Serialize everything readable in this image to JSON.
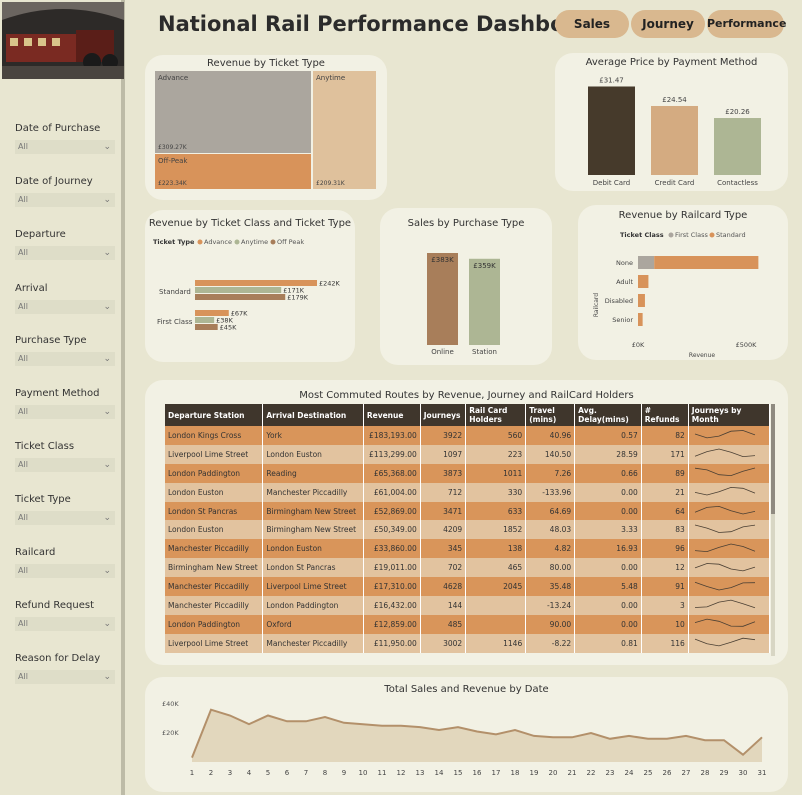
{
  "header": {
    "title": "National Rail Performance Dashboard"
  },
  "nav": {
    "sales": "Sales",
    "journey": "Journey",
    "performance": "Performance"
  },
  "filters": [
    {
      "label": "Date of Purchase",
      "value": "All"
    },
    {
      "label": "Date of Journey",
      "value": "All"
    },
    {
      "label": "Departure",
      "value": "All"
    },
    {
      "label": "Arrival",
      "value": "All"
    },
    {
      "label": "Purchase Type",
      "value": "All"
    },
    {
      "label": "Payment Method",
      "value": "All"
    },
    {
      "label": "Ticket Class",
      "value": "All"
    },
    {
      "label": "Ticket Type",
      "value": "All"
    },
    {
      "label": "Railcard",
      "value": "All"
    },
    {
      "label": "Refund Request",
      "value": "All"
    },
    {
      "label": "Reason for Delay",
      "value": "All"
    }
  ],
  "treemap": {
    "title": "Revenue by Ticket Type",
    "tiles": [
      {
        "name": "Advance",
        "value_label": "£309.27K",
        "color": "#aba69e"
      },
      {
        "name": "Off-Peak",
        "value_label": "£223.34K",
        "color": "#d8935a"
      },
      {
        "name": "Anytime",
        "value_label": "£209.31K",
        "color": "#dfc19c"
      }
    ]
  },
  "avg_price": {
    "title": "Average Price by Payment Method",
    "chart_data": {
      "type": "bar",
      "categories": [
        "Debit Card",
        "Credit Card",
        "Contactless"
      ],
      "values": [
        31.47,
        24.54,
        20.26
      ],
      "labels": [
        "£31.47",
        "£24.54",
        "£20.26"
      ],
      "colors": [
        "#463a2b",
        "#d4ab81",
        "#adb694"
      ]
    }
  },
  "class_type": {
    "title": "Revenue by Ticket Class and Ticket Type",
    "legend_title": "Ticket Type",
    "chart_data": {
      "type": "bar",
      "categories": [
        "Standard",
        "First Class"
      ],
      "series": [
        {
          "name": "Advance",
          "values": [
            242,
            67
          ],
          "labels": [
            "£242K",
            "£67K"
          ],
          "color": "#d8935a"
        },
        {
          "name": "Anytime",
          "values": [
            171,
            38
          ],
          "labels": [
            "£171K",
            "£38K"
          ],
          "color": "#adb694"
        },
        {
          "name": "Off Peak",
          "values": [
            179,
            45
          ],
          "labels": [
            "£179K",
            "£45K"
          ],
          "color": "#a87e5a"
        }
      ]
    }
  },
  "purchase_type": {
    "title": "Sales by Purchase Type",
    "chart_data": {
      "type": "bar",
      "categories": [
        "Online",
        "Station"
      ],
      "values": [
        383,
        359
      ],
      "labels": [
        "£383K",
        "£359K"
      ],
      "colors": [
        "#a87e5a",
        "#adb694"
      ]
    }
  },
  "railcard": {
    "title": "Revenue by Railcard Type",
    "legend_title": "Ticket Class",
    "axis_y_title": "Railcard",
    "axis_x_title": "Revenue",
    "x_ticks": [
      "£0K",
      "£500K"
    ],
    "chart_data": {
      "type": "bar",
      "categories": [
        "None",
        "Adult",
        "Disabled",
        "Senior"
      ],
      "series": [
        {
          "name": "First Class",
          "values": [
            70,
            0,
            0,
            0
          ],
          "color": "#aba69e"
        },
        {
          "name": "Standard",
          "values": [
            450,
            45,
            30,
            20
          ],
          "color": "#d8935a"
        }
      ],
      "xlim": [
        0,
        540
      ]
    }
  },
  "routes": {
    "title": "Most Commuted Routes by Revenue, Journey and RailCard Holders",
    "columns": [
      "Departure Station",
      "Arrival Destination",
      "Revenue",
      "Journeys",
      "Rail Card Holders",
      "Travel (mins)",
      "Avg. Delay(mins)",
      "# Refunds",
      "Journeys by Month"
    ],
    "rows": [
      [
        "London Kings Cross",
        "York",
        "£183,193.00",
        "3922",
        "560",
        "40.96",
        "0.57",
        "82"
      ],
      [
        "Liverpool Lime Street",
        "London Euston",
        "£113,299.00",
        "1097",
        "223",
        "140.50",
        "28.59",
        "171"
      ],
      [
        "London Paddington",
        "Reading",
        "£65,368.00",
        "3873",
        "1011",
        "7.26",
        "0.66",
        "89"
      ],
      [
        "London Euston",
        "Manchester Piccadilly",
        "£61,004.00",
        "712",
        "330",
        "-133.96",
        "0.00",
        "21"
      ],
      [
        "London St Pancras",
        "Birmingham New Street",
        "£52,869.00",
        "3471",
        "633",
        "64.69",
        "0.00",
        "64"
      ],
      [
        "London Euston",
        "Birmingham New Street",
        "£50,349.00",
        "4209",
        "1852",
        "48.03",
        "3.33",
        "83"
      ],
      [
        "Manchester Piccadilly",
        "London Euston",
        "£33,860.00",
        "345",
        "138",
        "4.82",
        "16.93",
        "96"
      ],
      [
        "Birmingham New Street",
        "London St Pancras",
        "£19,011.00",
        "702",
        "465",
        "80.00",
        "0.00",
        "12"
      ],
      [
        "Manchester Piccadilly",
        "Liverpool Lime Street",
        "£17,310.00",
        "4628",
        "2045",
        "35.48",
        "5.48",
        "91"
      ],
      [
        "Manchester Piccadilly",
        "London Paddington",
        "£16,432.00",
        "144",
        "",
        "-13.24",
        "0.00",
        "3"
      ],
      [
        "London Paddington",
        "Oxford",
        "£12,859.00",
        "485",
        "",
        "90.00",
        "0.00",
        "10"
      ],
      [
        "Liverpool Lime Street",
        "Manchester Piccadilly",
        "£11,950.00",
        "3002",
        "1146",
        "-8.22",
        "0.81",
        "116"
      ]
    ]
  },
  "daily": {
    "title": "Total Sales and Revenue by Date",
    "y_ticks": [
      "£40K",
      "£20K"
    ],
    "chart_data": {
      "type": "area",
      "x": [
        1,
        2,
        3,
        4,
        5,
        6,
        7,
        8,
        9,
        10,
        11,
        12,
        13,
        14,
        15,
        16,
        17,
        18,
        19,
        20,
        21,
        22,
        23,
        24,
        25,
        26,
        27,
        28,
        29,
        30,
        31
      ],
      "values": [
        3,
        36,
        32,
        26,
        32,
        28,
        28,
        31,
        27,
        26,
        25,
        25,
        24,
        22,
        24,
        21,
        19,
        22,
        18,
        17,
        17,
        20,
        16,
        18,
        16,
        16,
        18,
        15,
        15,
        5,
        17
      ],
      "ylim": [
        0,
        45
      ]
    }
  }
}
